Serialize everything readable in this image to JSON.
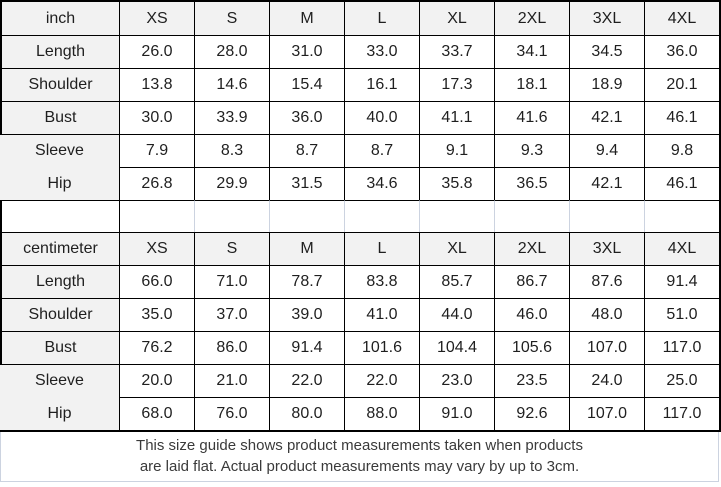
{
  "colors": {
    "grid_border": "#000000",
    "header_bg": "#f2f2f2",
    "light_border": "#ccd3e0",
    "text": "#1f1f1f",
    "footer_text": "#3a3a3a",
    "background": "#ffffff"
  },
  "sizes": [
    "XS",
    "S",
    "M",
    "L",
    "XL",
    "2XL",
    "3XL",
    "4XL"
  ],
  "tables": [
    {
      "unit": "inch",
      "rows": [
        {
          "label": "Length",
          "values": [
            "26.0",
            "28.0",
            "31.0",
            "33.0",
            "33.7",
            "34.1",
            "34.5",
            "36.0"
          ]
        },
        {
          "label": "Shoulder",
          "values": [
            "13.8",
            "14.6",
            "15.4",
            "16.1",
            "17.3",
            "18.1",
            "18.9",
            "20.1"
          ]
        },
        {
          "label": "Bust",
          "values": [
            "30.0",
            "33.9",
            "36.0",
            "40.0",
            "41.1",
            "41.6",
            "42.1",
            "46.1"
          ]
        },
        {
          "label": "Sleeve",
          "values": [
            "7.9",
            "8.3",
            "8.7",
            "8.7",
            "9.1",
            "9.3",
            "9.4",
            "9.8"
          ]
        },
        {
          "label": "Hip",
          "values": [
            "26.8",
            "29.9",
            "31.5",
            "34.6",
            "35.8",
            "36.5",
            "42.1",
            "46.1"
          ]
        }
      ]
    },
    {
      "unit": "centimeter",
      "rows": [
        {
          "label": "Length",
          "values": [
            "66.0",
            "71.0",
            "78.7",
            "83.8",
            "85.7",
            "86.7",
            "87.6",
            "91.4"
          ]
        },
        {
          "label": "Shoulder",
          "values": [
            "35.0",
            "37.0",
            "39.0",
            "41.0",
            "44.0",
            "46.0",
            "48.0",
            "51.0"
          ]
        },
        {
          "label": "Bust",
          "values": [
            "76.2",
            "86.0",
            "91.4",
            "101.6",
            "104.4",
            "105.6",
            "107.0",
            "117.0"
          ]
        },
        {
          "label": "Sleeve",
          "values": [
            "20.0",
            "21.0",
            "22.0",
            "22.0",
            "23.0",
            "23.5",
            "24.0",
            "25.0"
          ]
        },
        {
          "label": "Hip",
          "values": [
            "68.0",
            "76.0",
            "80.0",
            "88.0",
            "91.0",
            "92.6",
            "107.0",
            "117.0"
          ]
        }
      ]
    }
  ],
  "footer": {
    "line1": "This size guide shows product measurements taken when products",
    "line2": "are laid flat. Actual product measurements may vary by up to 3cm."
  }
}
